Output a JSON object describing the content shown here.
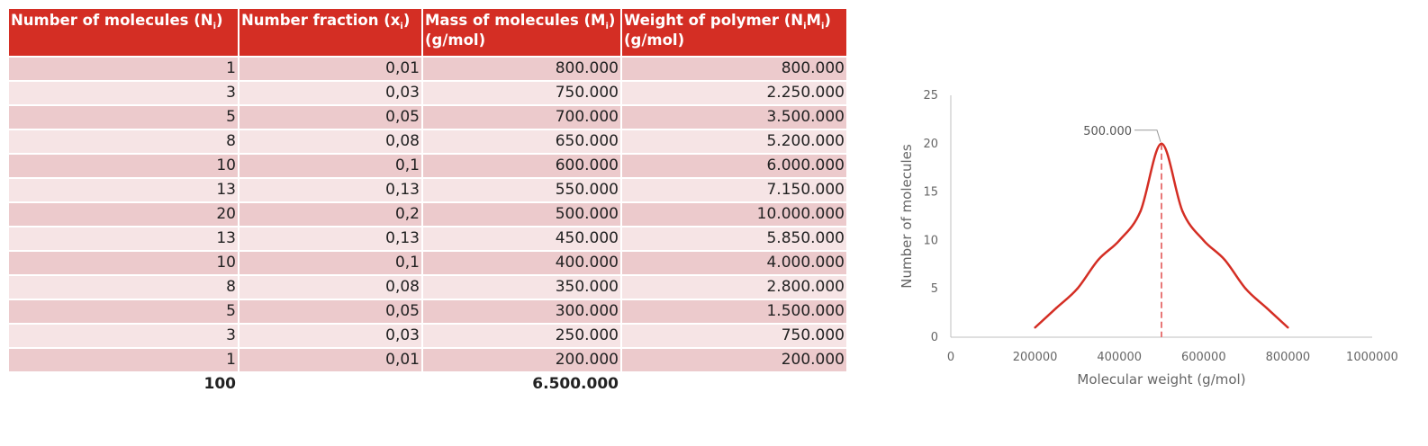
{
  "table": {
    "headers": [
      {
        "text": "Number of molecules (N",
        "sub": "i",
        "tail": ")"
      },
      {
        "text": "Number fraction (x",
        "sub": "i",
        "tail": ")"
      },
      {
        "text": "Mass of molecules (M",
        "sub": "i",
        "tail": ")",
        "line2": "(g/mol)"
      },
      {
        "text": "Weight of polymer (N",
        "sub": "i",
        "mid": "M",
        "sub2": "i",
        "tail": ")",
        "line2": "(g/mol)"
      }
    ],
    "rows": [
      [
        "1",
        "0,01",
        "800.000",
        "800.000"
      ],
      [
        "3",
        "0,03",
        "750.000",
        "2.250.000"
      ],
      [
        "5",
        "0,05",
        "700.000",
        "3.500.000"
      ],
      [
        "8",
        "0,08",
        "650.000",
        "5.200.000"
      ],
      [
        "10",
        "0,1",
        "600.000",
        "6.000.000"
      ],
      [
        "13",
        "0,13",
        "550.000",
        "7.150.000"
      ],
      [
        "20",
        "0,2",
        "500.000",
        "10.000.000"
      ],
      [
        "13",
        "0,13",
        "450.000",
        "5.850.000"
      ],
      [
        "10",
        "0,1",
        "400.000",
        "4.000.000"
      ],
      [
        "8",
        "0,08",
        "350.000",
        "2.800.000"
      ],
      [
        "5",
        "0,05",
        "300.000",
        "1.500.000"
      ],
      [
        "3",
        "0,03",
        "250.000",
        "750.000"
      ],
      [
        "1",
        "0,01",
        "200.000",
        "200.000"
      ]
    ],
    "totals": [
      "100",
      "",
      "6.500.000",
      ""
    ]
  },
  "chart_data": {
    "type": "line",
    "x": [
      200000,
      250000,
      300000,
      350000,
      400000,
      450000,
      500000,
      550000,
      600000,
      650000,
      700000,
      750000,
      800000
    ],
    "series": [
      {
        "values": [
          1,
          3,
          5,
          8,
          10,
          13,
          20,
          13,
          10,
          8,
          5,
          3,
          1
        ],
        "color": "#d42e24"
      }
    ],
    "xlabel": "Molecular weight (g/mol)",
    "ylabel": "Number of molecules",
    "xlim": [
      0,
      1000000
    ],
    "ylim": [
      0,
      25
    ],
    "xticks": [
      "0",
      "200000",
      "400000",
      "600000",
      "800000",
      "1000000"
    ],
    "yticks": [
      "0",
      "5",
      "10",
      "15",
      "20",
      "25"
    ],
    "grid": false,
    "annotations": [
      {
        "text": "500.000",
        "x": 500000,
        "y": 20,
        "color": "#555555"
      }
    ],
    "reference_line": {
      "x": 500000,
      "color": "#e87878",
      "style": "dashed"
    }
  }
}
